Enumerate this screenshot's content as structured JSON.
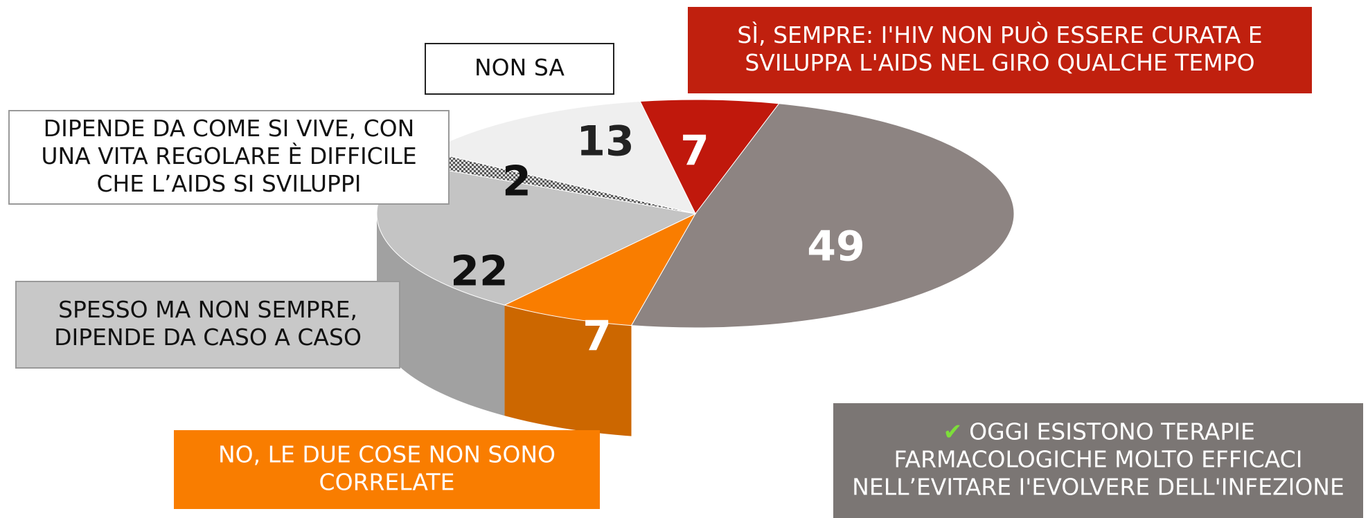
{
  "chart_data": {
    "type": "pie",
    "categories": [
      [
        "SÌ, SEMPRE: I'HIV NON PUÒ ESSERE CURATA E",
        "SVILUPPA L'AIDS NEL GIRO QUALCHE TEMPO"
      ],
      [
        "OGGI ESISTONO TERAPIE",
        "FARMACOLOGICHE MOLTO EFFICACI",
        "NELL’EVITARE I'EVOLVERE DELL'INFEZIONE"
      ],
      [
        "NO, LE DUE COSE NON SONO",
        "CORRELATE"
      ],
      [
        "SPESSO  MA NON SEMPRE,",
        "DIPENDE DA CASO A CASO"
      ],
      [
        "DIPENDE DA COME SI VIVE, CON",
        "UNA VITA REGOLARE È DIFFICILE",
        "CHE L’AIDS SI SVILUPPI"
      ],
      [
        "NON SA"
      ]
    ],
    "values": [
      7,
      49,
      7,
      22,
      2,
      13
    ],
    "colors": [
      "#c0180c",
      "#8d8482",
      "#f97d00",
      "#c4c4c4",
      "#8a8a8a",
      "#efefef"
    ],
    "check_mark": "✔"
  }
}
